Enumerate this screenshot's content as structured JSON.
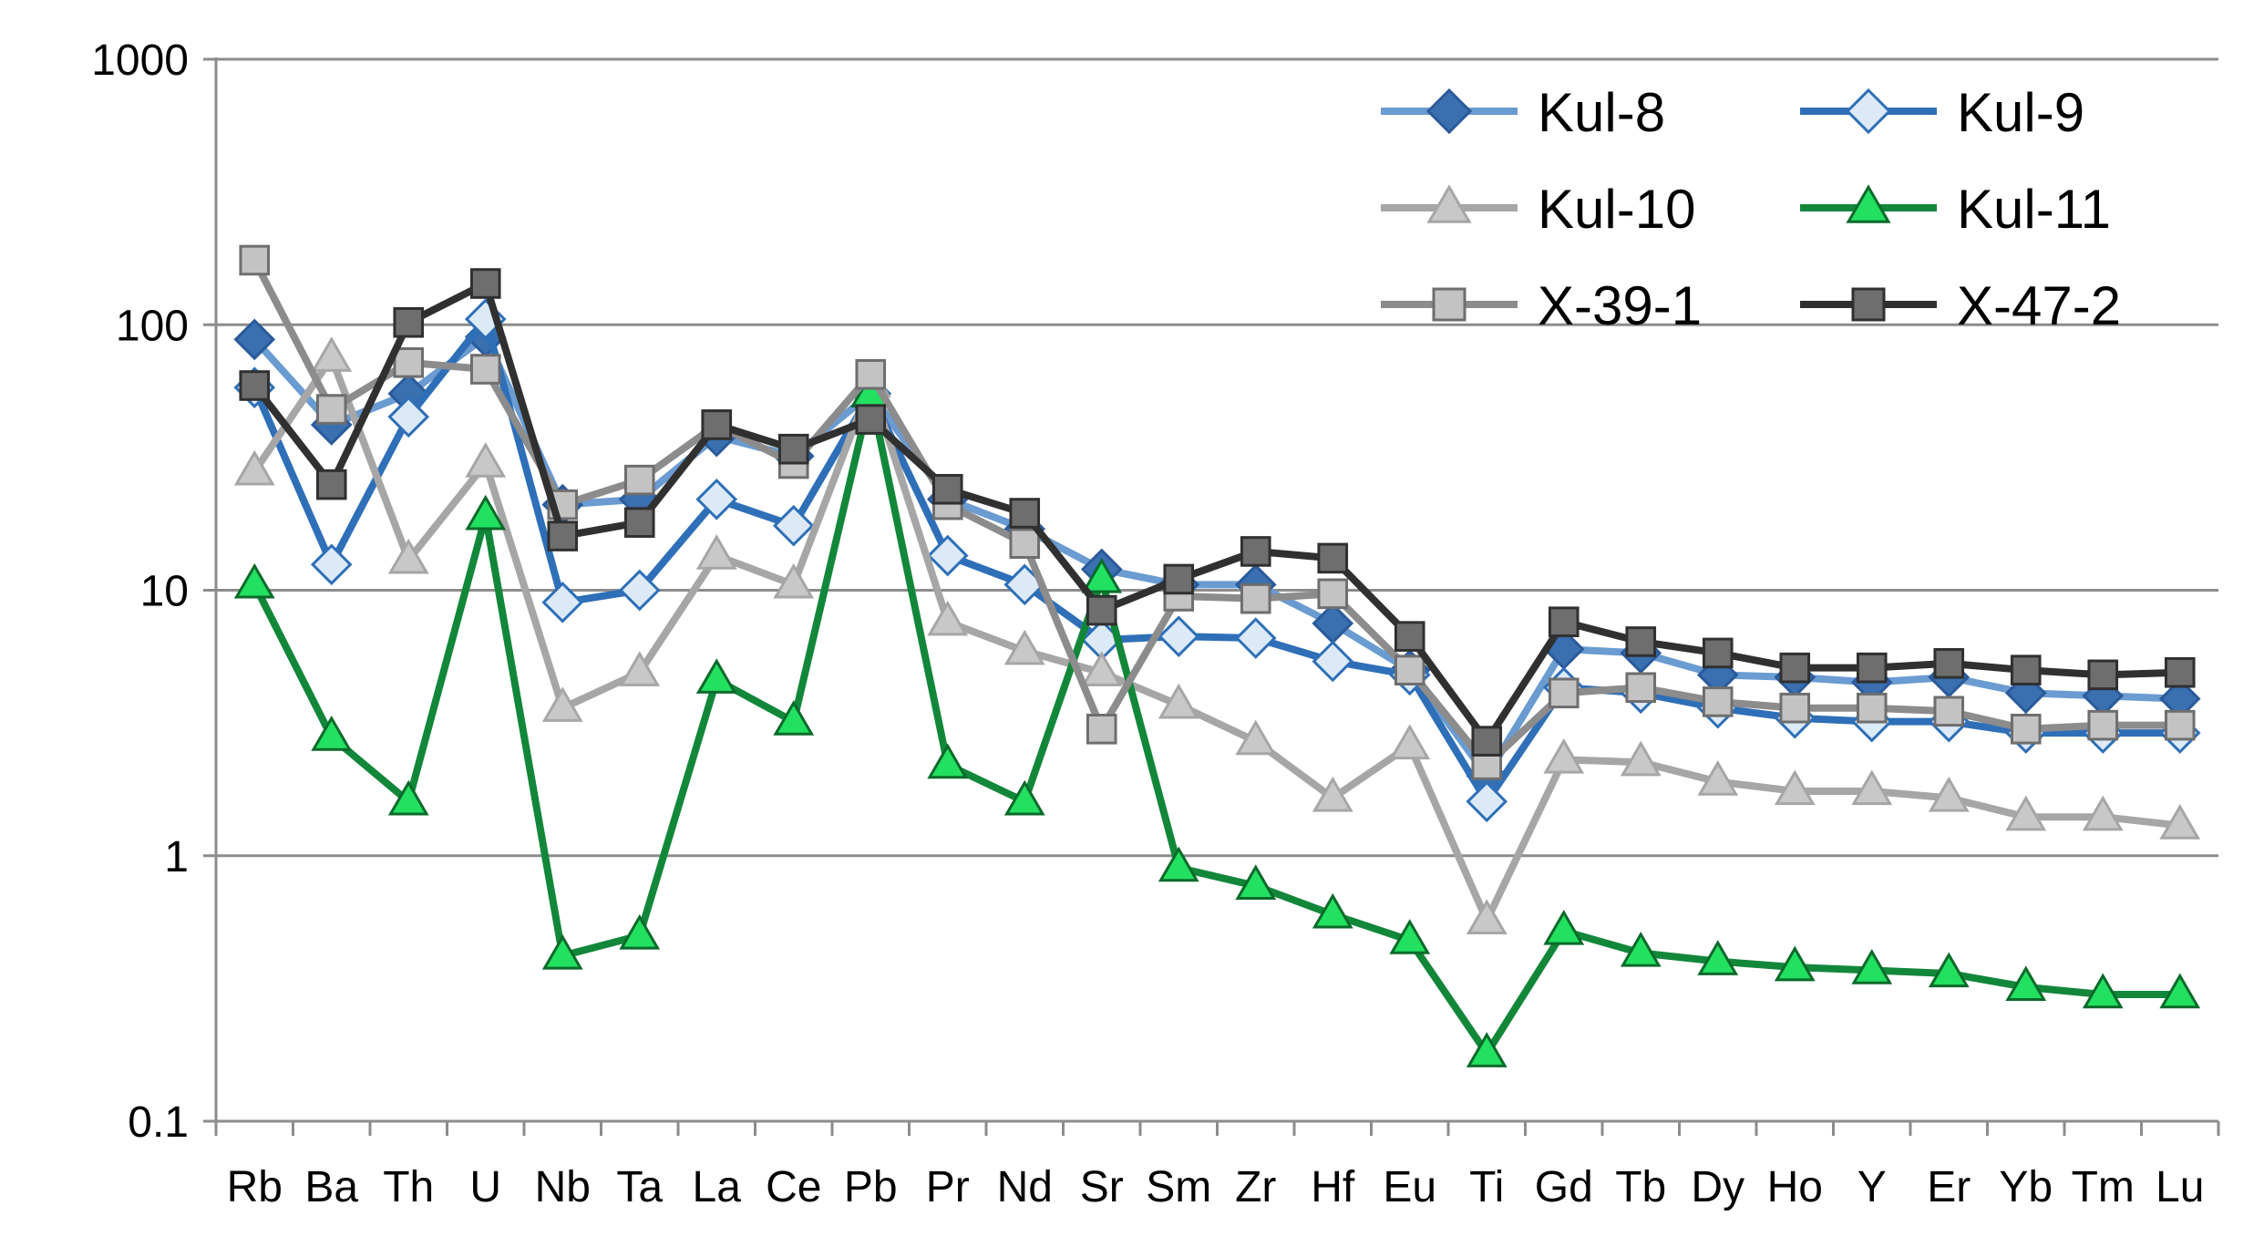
{
  "chart_data": {
    "type": "line",
    "yscale": "log",
    "ylim": [
      0.1,
      1000
    ],
    "yticks": [
      "1000",
      "100",
      "10",
      "1",
      "0.1"
    ],
    "ytick_values": [
      1000,
      100,
      10,
      1,
      0.1
    ],
    "grid": true,
    "legend_position": "top-right",
    "title": "",
    "xlabel": "",
    "ylabel": "",
    "categories": [
      "Rb",
      "Ba",
      "Th",
      "U",
      "Nb",
      "Ta",
      "La",
      "Ce",
      "Pb",
      "Pr",
      "Nd",
      "Sr",
      "Sm",
      "Zr",
      "Hf",
      "Eu",
      "Ti",
      "Gd",
      "Tb",
      "Dy",
      "Ho",
      "Y",
      "Er",
      "Yb",
      "Tm",
      "Lu"
    ],
    "series": [
      {
        "name": "Kul-8",
        "line_color": "#6a9bd1",
        "marker": "diamond",
        "marker_fill": "#3a6fb0",
        "marker_stroke": "#2a5a9a",
        "values": [
          88,
          42,
          55,
          90,
          21,
          22,
          38,
          32,
          55,
          22,
          17,
          12,
          10.5,
          10.5,
          7.5,
          5,
          2,
          6,
          5.8,
          4.8,
          4.7,
          4.5,
          4.7,
          4.1,
          4.0,
          3.9
        ]
      },
      {
        "name": "Kul-9",
        "line_color": "#2e6fb8",
        "marker": "diamond",
        "marker_fill": "#dceaf7",
        "marker_stroke": "#2e6fb8",
        "values": [
          58,
          12.5,
          45,
          105,
          9,
          10,
          22,
          17.5,
          55,
          13.5,
          10.5,
          6.5,
          6.7,
          6.6,
          5.4,
          4.8,
          1.6,
          4.3,
          4.1,
          3.6,
          3.3,
          3.2,
          3.2,
          2.9,
          2.9,
          2.9
        ]
      },
      {
        "name": "Kul-10",
        "line_color": "#a6a6a6",
        "marker": "triangle",
        "marker_fill": "#c8c8c8",
        "marker_stroke": "#a6a6a6",
        "values": [
          28,
          75,
          13,
          30,
          3.6,
          4.9,
          13.5,
          10.5,
          60,
          7.6,
          5.9,
          4.9,
          3.7,
          2.7,
          1.65,
          2.6,
          0.57,
          2.3,
          2.25,
          1.9,
          1.75,
          1.75,
          1.65,
          1.4,
          1.4,
          1.3
        ]
      },
      {
        "name": "Kul-11",
        "line_color": "#12873a",
        "marker": "triangle",
        "marker_fill": "#22e060",
        "marker_stroke": "#0a6a2a",
        "values": [
          10.5,
          2.8,
          1.6,
          19,
          0.42,
          0.5,
          4.6,
          3.2,
          55,
          2.2,
          1.6,
          11,
          0.9,
          0.77,
          0.6,
          0.48,
          0.18,
          0.52,
          0.43,
          0.4,
          0.38,
          0.37,
          0.36,
          0.32,
          0.3,
          0.3
        ]
      },
      {
        "name": "X-39-1",
        "line_color": "#8c8c8c",
        "marker": "square",
        "marker_fill": "#c3c3c3",
        "marker_stroke": "#6e6e6e",
        "values": [
          175,
          48,
          72,
          68,
          21,
          26,
          42,
          30,
          65,
          21,
          15,
          3,
          9.5,
          9.3,
          9.7,
          5,
          2.2,
          4.1,
          4.3,
          3.8,
          3.6,
          3.6,
          3.5,
          3,
          3.1,
          3.1
        ]
      },
      {
        "name": "X-47-2",
        "line_color": "#303030",
        "marker": "square",
        "marker_fill": "#6e6e6e",
        "marker_stroke": "#303030",
        "values": [
          59,
          25,
          102,
          143,
          16,
          18,
          42,
          34,
          44,
          24,
          19.5,
          8.4,
          11,
          14,
          13.2,
          6.7,
          2.7,
          7.6,
          6.4,
          5.8,
          5.1,
          5.1,
          5.3,
          5,
          4.8,
          4.9
        ]
      }
    ]
  }
}
